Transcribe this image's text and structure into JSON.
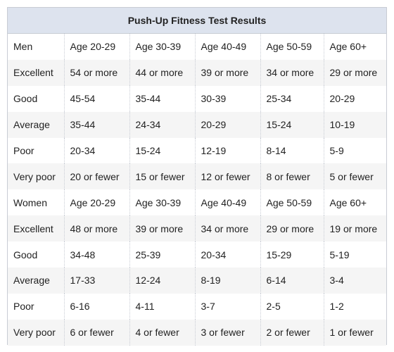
{
  "title": "Push-Up Fitness Test Results",
  "rows": [
    [
      "Men",
      "Age 20-29",
      "Age 30-39",
      "Age 40-49",
      "Age 50-59",
      "Age 60+"
    ],
    [
      "Excellent",
      "54 or more",
      "44 or more",
      "39 or more",
      "34 or more",
      "29 or more"
    ],
    [
      "Good",
      "45-54",
      "35-44",
      "30-39",
      "25-34",
      "20-29"
    ],
    [
      "Average",
      "35-44",
      "24-34",
      "20-29",
      "15-24",
      "10-19"
    ],
    [
      "Poor",
      "20-34",
      "15-24",
      "12-19",
      "8-14",
      "5-9"
    ],
    [
      "Very poor",
      "20 or fewer",
      "15 or fewer",
      "12 or fewer",
      "8 or fewer",
      "5 or fewer"
    ],
    [
      "Women",
      "Age 20-29",
      "Age 30-39",
      "Age 40-49",
      "Age 50-59",
      "Age 60+"
    ],
    [
      "Excellent",
      "48 or more",
      "39 or more",
      "34 or more",
      "29 or more",
      "19 or more"
    ],
    [
      "Good",
      "34-48",
      "25-39",
      "20-34",
      "15-29",
      "5-19"
    ],
    [
      "Average",
      "17-33",
      "12-24",
      "8-19",
      "6-14",
      "3-4"
    ],
    [
      "Poor",
      "6-16",
      "4-11",
      "3-7",
      "2-5",
      "1-2"
    ],
    [
      "Very poor",
      "6 or fewer",
      "4 or fewer",
      "3 or fewer",
      "2 or fewer",
      "1 or fewer"
    ]
  ]
}
